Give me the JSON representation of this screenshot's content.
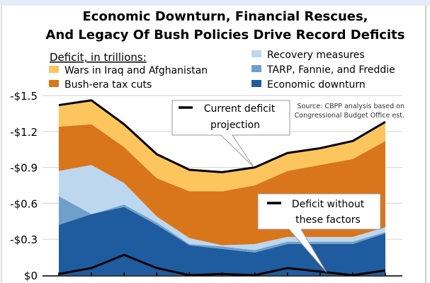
{
  "chart_data": {
    "type": "area",
    "stacked": true,
    "title": [
      "Economic Downturn, Financial Rescues,",
      "And Legacy Of Bush Policies Drive Record Deficits"
    ],
    "legend_title": "Deficit, in trillions:",
    "ylim": [
      0,
      1.5
    ],
    "y_ticks": [
      "-$1.5",
      "-$1.2",
      "-$0.9",
      "-$0.6",
      "-$0.3",
      "$0"
    ],
    "y_tick_values": [
      1.5,
      1.2,
      0.9,
      0.6,
      0.3,
      0
    ],
    "grid": true,
    "legend_placement": "top",
    "series": [
      {
        "name": "Economic downturn",
        "color": "#1F5C9F",
        "values": [
          0.42,
          0.51,
          0.57,
          0.42,
          0.25,
          0.22,
          0.19,
          0.26,
          0.26,
          0.26,
          0.35
        ]
      },
      {
        "name": "TARP, Fannie, and Freddie",
        "color": "#6FA0CB",
        "values": [
          0.24,
          0.0,
          0.02,
          0.02,
          0.01,
          0.02,
          0.02,
          0.02,
          0.02,
          0.02,
          0.01
        ]
      },
      {
        "name": "Recovery measures",
        "color": "#BDD7EE",
        "values": [
          0.21,
          0.41,
          0.18,
          0.05,
          0.05,
          0.01,
          0.05,
          0.04,
          0.04,
          0.04,
          0.04
        ]
      },
      {
        "name": "Bush-era tax cuts",
        "color": "#D9751A",
        "values": [
          0.37,
          0.34,
          0.3,
          0.32,
          0.39,
          0.45,
          0.49,
          0.55,
          0.6,
          0.65,
          0.72
        ]
      },
      {
        "name": "Wars in Iraq and Afghanistan",
        "color": "#FDC55E",
        "values": [
          0.18,
          0.2,
          0.19,
          0.2,
          0.18,
          0.16,
          0.15,
          0.15,
          0.14,
          0.15,
          0.16
        ]
      }
    ],
    "lines": [
      {
        "name": "Current deficit projection",
        "values": [
          1.42,
          1.46,
          1.26,
          1.01,
          0.88,
          0.86,
          0.9,
          1.02,
          1.06,
          1.12,
          1.28
        ]
      },
      {
        "name": "Deficit without these factors",
        "values": [
          0.01,
          0.06,
          0.17,
          0.06,
          0.0,
          0.01,
          0.0,
          0.06,
          0.03,
          0.0,
          0.04
        ]
      }
    ],
    "callouts": {
      "current": [
        "Current deficit",
        "projection"
      ],
      "without": [
        "Deficit without",
        "these factors"
      ]
    },
    "source": [
      "Source: CBPP analysis based on",
      "Congressional Budget Office est."
    ]
  }
}
